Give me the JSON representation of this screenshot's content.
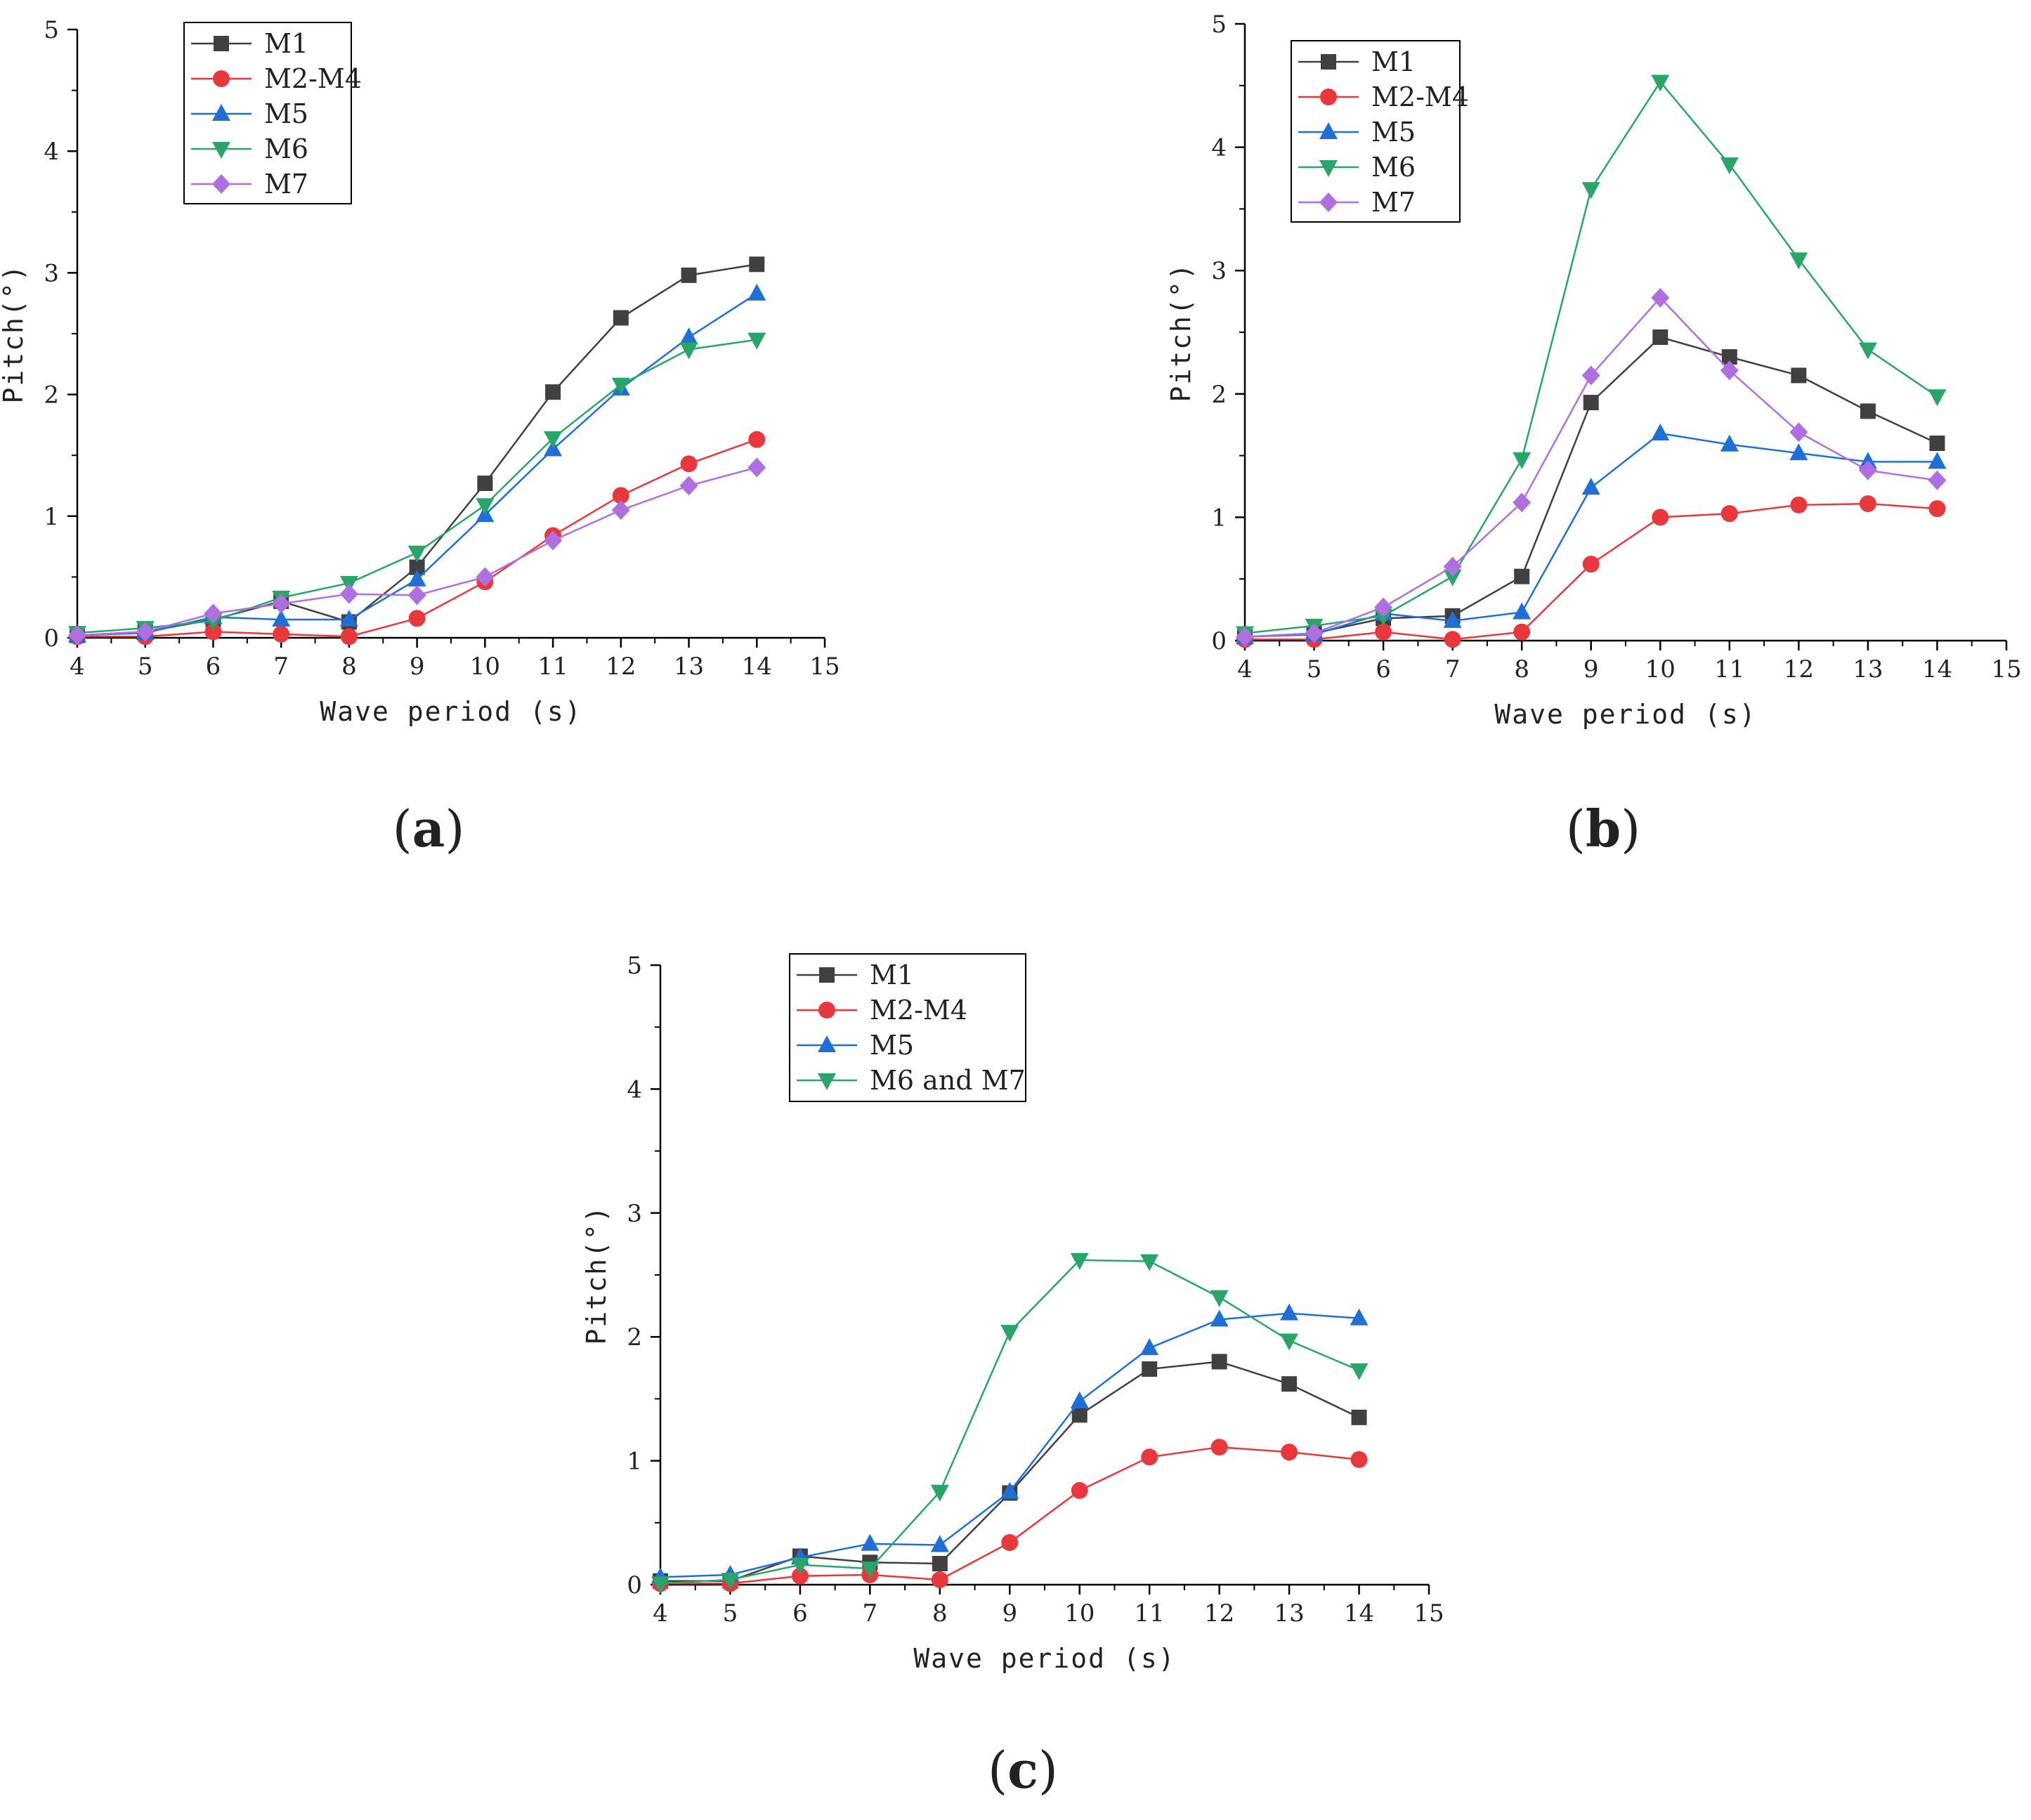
{
  "chart_data": [
    {
      "type": "line",
      "label_letter": "a",
      "x": [
        4,
        5,
        6,
        7,
        8,
        9,
        10,
        11,
        12,
        13,
        14
      ],
      "xlim": [
        4,
        15
      ],
      "ylim": [
        0,
        5
      ],
      "xticks": [
        4,
        5,
        6,
        7,
        8,
        9,
        10,
        11,
        12,
        13,
        14,
        15
      ],
      "yticks": [
        0,
        1,
        2,
        3,
        4,
        5
      ],
      "xlabel": "Wave period (s)",
      "ylabel": "Pitch(°)",
      "legend_position": "top-left",
      "series": [
        {
          "name": "M1",
          "marker": "square",
          "color": "#404040",
          "values": [
            0.02,
            0.05,
            0.15,
            0.3,
            0.13,
            0.58,
            1.27,
            2.02,
            2.63,
            2.98,
            3.07
          ]
        },
        {
          "name": "M2-M4",
          "marker": "circle",
          "color": "#e8383d",
          "values": [
            0.01,
            0.01,
            0.05,
            0.03,
            0.01,
            0.16,
            0.46,
            0.84,
            1.17,
            1.43,
            1.63
          ]
        },
        {
          "name": "M5",
          "marker": "triangle-up",
          "color": "#1f6fd6",
          "values": [
            0.02,
            0.04,
            0.17,
            0.15,
            0.15,
            0.48,
            1.01,
            1.55,
            2.05,
            2.47,
            2.83
          ]
        },
        {
          "name": "M6",
          "marker": "triangle-down",
          "color": "#2aa56a",
          "values": [
            0.04,
            0.08,
            0.14,
            0.33,
            0.45,
            0.7,
            1.09,
            1.64,
            2.08,
            2.37,
            2.45
          ]
        },
        {
          "name": "M7",
          "marker": "diamond",
          "color": "#b06fe0",
          "values": [
            0.02,
            0.05,
            0.2,
            0.28,
            0.36,
            0.35,
            0.5,
            0.8,
            1.05,
            1.25,
            1.4
          ]
        }
      ]
    },
    {
      "type": "line",
      "label_letter": "b",
      "x": [
        4,
        5,
        6,
        7,
        8,
        9,
        10,
        11,
        12,
        13,
        14
      ],
      "xlim": [
        4,
        15
      ],
      "ylim": [
        0,
        5
      ],
      "xticks": [
        4,
        5,
        6,
        7,
        8,
        9,
        10,
        11,
        12,
        13,
        14,
        15
      ],
      "yticks": [
        0,
        1,
        2,
        3,
        4,
        5
      ],
      "xlabel": "Wave period (s)",
      "ylabel": "Pitch(°)",
      "legend_position": "top-left",
      "series": [
        {
          "name": "M1",
          "marker": "square",
          "color": "#404040",
          "values": [
            0.03,
            0.06,
            0.18,
            0.2,
            0.52,
            1.93,
            2.46,
            2.3,
            2.15,
            1.86,
            1.6
          ]
        },
        {
          "name": "M2-M4",
          "marker": "circle",
          "color": "#e8383d",
          "values": [
            0.01,
            0.01,
            0.07,
            0.01,
            0.07,
            0.62,
            1.0,
            1.03,
            1.1,
            1.11,
            1.07
          ]
        },
        {
          "name": "M5",
          "marker": "triangle-up",
          "color": "#1f6fd6",
          "values": [
            0.03,
            0.05,
            0.22,
            0.16,
            0.23,
            1.24,
            1.68,
            1.59,
            1.52,
            1.45,
            1.45
          ]
        },
        {
          "name": "M6",
          "marker": "triangle-down",
          "color": "#2aa56a",
          "values": [
            0.06,
            0.12,
            0.2,
            0.52,
            1.47,
            3.66,
            4.53,
            3.86,
            3.09,
            2.36,
            1.98
          ]
        },
        {
          "name": "M7",
          "marker": "diamond",
          "color": "#b06fe0",
          "values": [
            0.03,
            0.06,
            0.27,
            0.6,
            1.12,
            2.15,
            2.78,
            2.19,
            1.69,
            1.38,
            1.3
          ]
        }
      ]
    },
    {
      "type": "line",
      "label_letter": "c",
      "x": [
        4,
        5,
        6,
        7,
        8,
        9,
        10,
        11,
        12,
        13,
        14
      ],
      "xlim": [
        4,
        15
      ],
      "ylim": [
        0,
        5
      ],
      "xticks": [
        4,
        5,
        6,
        7,
        8,
        9,
        10,
        11,
        12,
        13,
        14,
        15
      ],
      "yticks": [
        0,
        1,
        2,
        3,
        4,
        5
      ],
      "xlabel": "Wave period (s)",
      "ylabel": "Pitch(°)",
      "legend_position": "top-left",
      "series": [
        {
          "name": "M1",
          "marker": "square",
          "color": "#404040",
          "values": [
            0.03,
            0.03,
            0.23,
            0.18,
            0.17,
            0.74,
            1.37,
            1.74,
            1.8,
            1.62,
            1.35
          ]
        },
        {
          "name": "M2-M4",
          "marker": "circle",
          "color": "#e8383d",
          "values": [
            0.01,
            0.01,
            0.07,
            0.08,
            0.04,
            0.34,
            0.76,
            1.03,
            1.11,
            1.07,
            1.01
          ]
        },
        {
          "name": "M5",
          "marker": "triangle-up",
          "color": "#1f6fd6",
          "values": [
            0.06,
            0.08,
            0.22,
            0.33,
            0.32,
            0.75,
            1.48,
            1.91,
            2.14,
            2.19,
            2.15
          ]
        },
        {
          "name": "M6 and M7",
          "marker": "triangle-down",
          "color": "#2aa56a",
          "values": [
            0.01,
            0.04,
            0.16,
            0.13,
            0.75,
            2.04,
            2.62,
            2.61,
            2.32,
            1.97,
            1.73
          ]
        }
      ]
    }
  ],
  "panel_labels": [
    "(a)",
    "(b)",
    "(c)"
  ]
}
